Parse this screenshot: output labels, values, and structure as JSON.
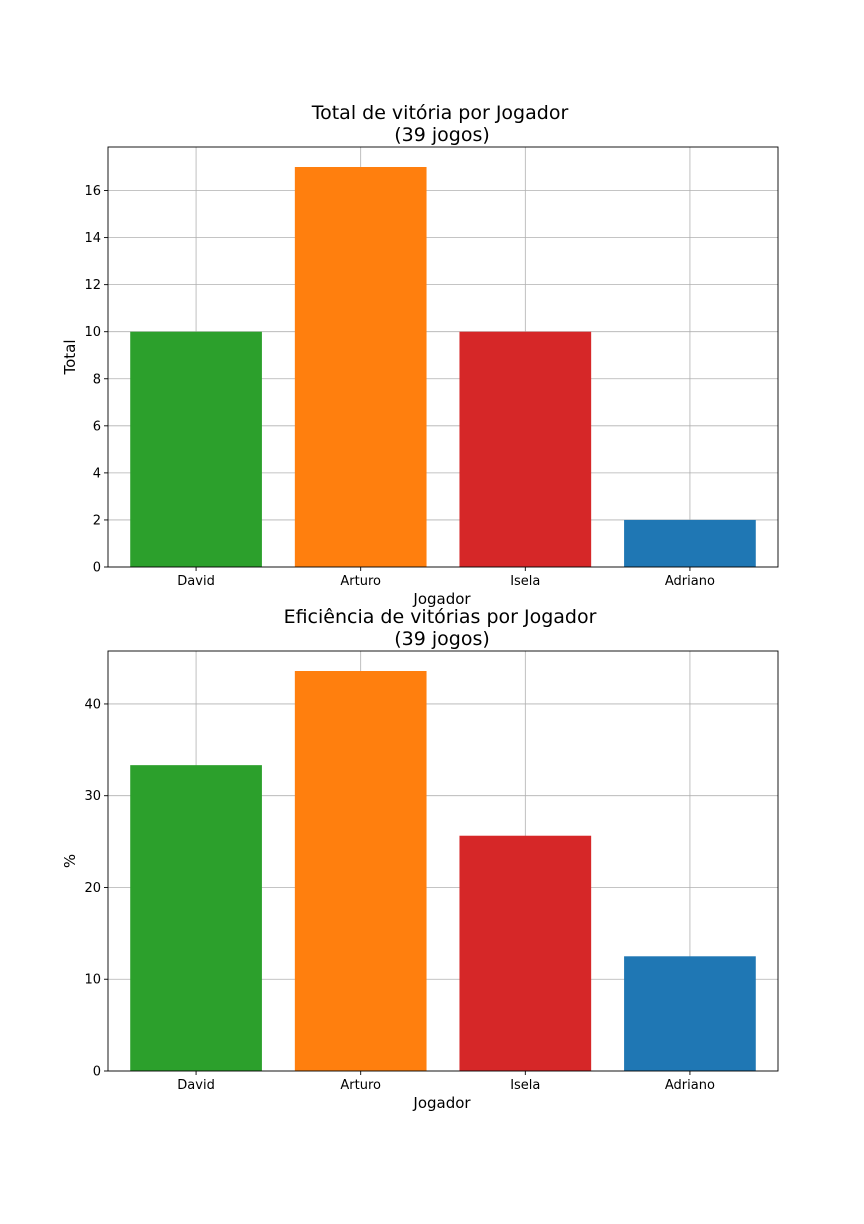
{
  "colors": {
    "David": "#2ca02c",
    "Arturo": "#ff7f0e",
    "Isela": "#d62728",
    "Adriano": "#1f77b4",
    "grid": "#b0b0b0"
  },
  "chart_data": [
    {
      "type": "bar",
      "title": "Total de vitória por Jogador",
      "subtitle": "(39 jogos)",
      "xlabel": "Jogador",
      "ylabel": "Total",
      "categories": [
        "David",
        "Arturo",
        "Isela",
        "Adriano"
      ],
      "values": [
        10,
        17,
        10,
        2
      ],
      "ylim": [
        0,
        17.85
      ],
      "yticks": [
        0,
        2,
        4,
        6,
        8,
        10,
        12,
        14,
        16
      ],
      "grid": true
    },
    {
      "type": "bar",
      "title": "Eficiência de vitórias por Jogador",
      "subtitle": "(39 jogos)",
      "xlabel": "Jogador",
      "ylabel": "%",
      "categories": [
        "David",
        "Arturo",
        "Isela",
        "Adriano"
      ],
      "values": [
        33.33,
        43.59,
        25.64,
        12.5
      ],
      "ylim": [
        0,
        45.77
      ],
      "yticks": [
        0,
        10,
        20,
        30,
        40
      ],
      "grid": true
    }
  ]
}
